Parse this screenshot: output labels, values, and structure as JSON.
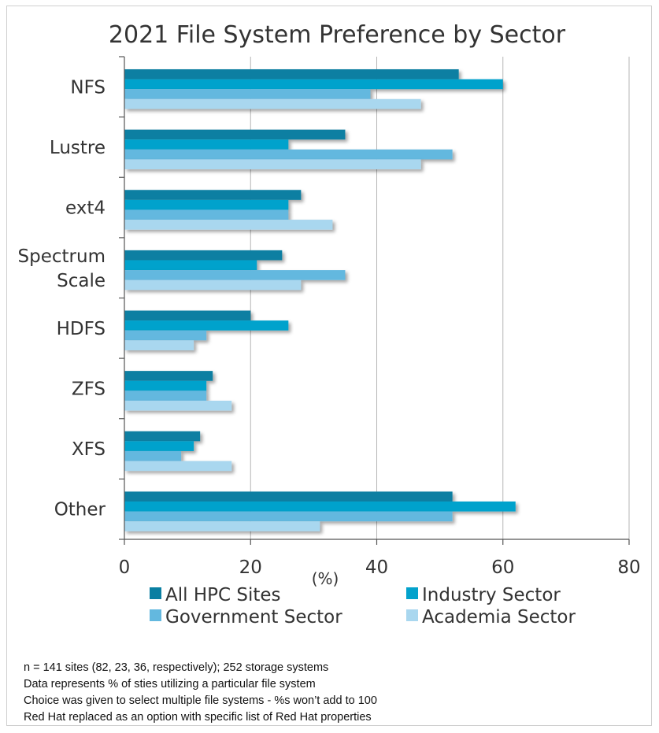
{
  "chart_data": {
    "type": "bar",
    "orientation": "horizontal",
    "title": "2021 File System Preference by Sector",
    "xlabel": "(%)",
    "ylabel": "",
    "xlim": [
      0,
      80
    ],
    "xticks": [
      0,
      20,
      40,
      60,
      80
    ],
    "grid": "vertical",
    "legend_position": "bottom",
    "categories": [
      "NFS",
      "Lustre",
      "ext4",
      "Spectrum Scale",
      "HDFS",
      "ZFS",
      "XFS",
      "Other"
    ],
    "series": [
      {
        "name": "All HPC Sites",
        "color": "#0a7fa2",
        "values": [
          53,
          35,
          28,
          25,
          20,
          14,
          12,
          52
        ]
      },
      {
        "name": "Industry Sector",
        "color": "#03a2cc",
        "values": [
          60,
          26,
          26,
          21,
          26,
          13,
          11,
          62
        ]
      },
      {
        "name": "Government Sector",
        "color": "#63b8df",
        "values": [
          39,
          52,
          26,
          35,
          13,
          13,
          9,
          52
        ]
      },
      {
        "name": "Academia Sector",
        "color": "#a9d7ef",
        "values": [
          47,
          47,
          33,
          28,
          11,
          17,
          17,
          31
        ]
      }
    ]
  },
  "notes": [
    "n = 141 sites (82, 23, 36, respectively); 252 storage systems",
    "Data represents % of sties utilizing a particular file system",
    "Choice was given to select multiple file systems - %s won’t add to 100",
    "Red Hat replaced as an option with specific list of Red Hat properties"
  ]
}
